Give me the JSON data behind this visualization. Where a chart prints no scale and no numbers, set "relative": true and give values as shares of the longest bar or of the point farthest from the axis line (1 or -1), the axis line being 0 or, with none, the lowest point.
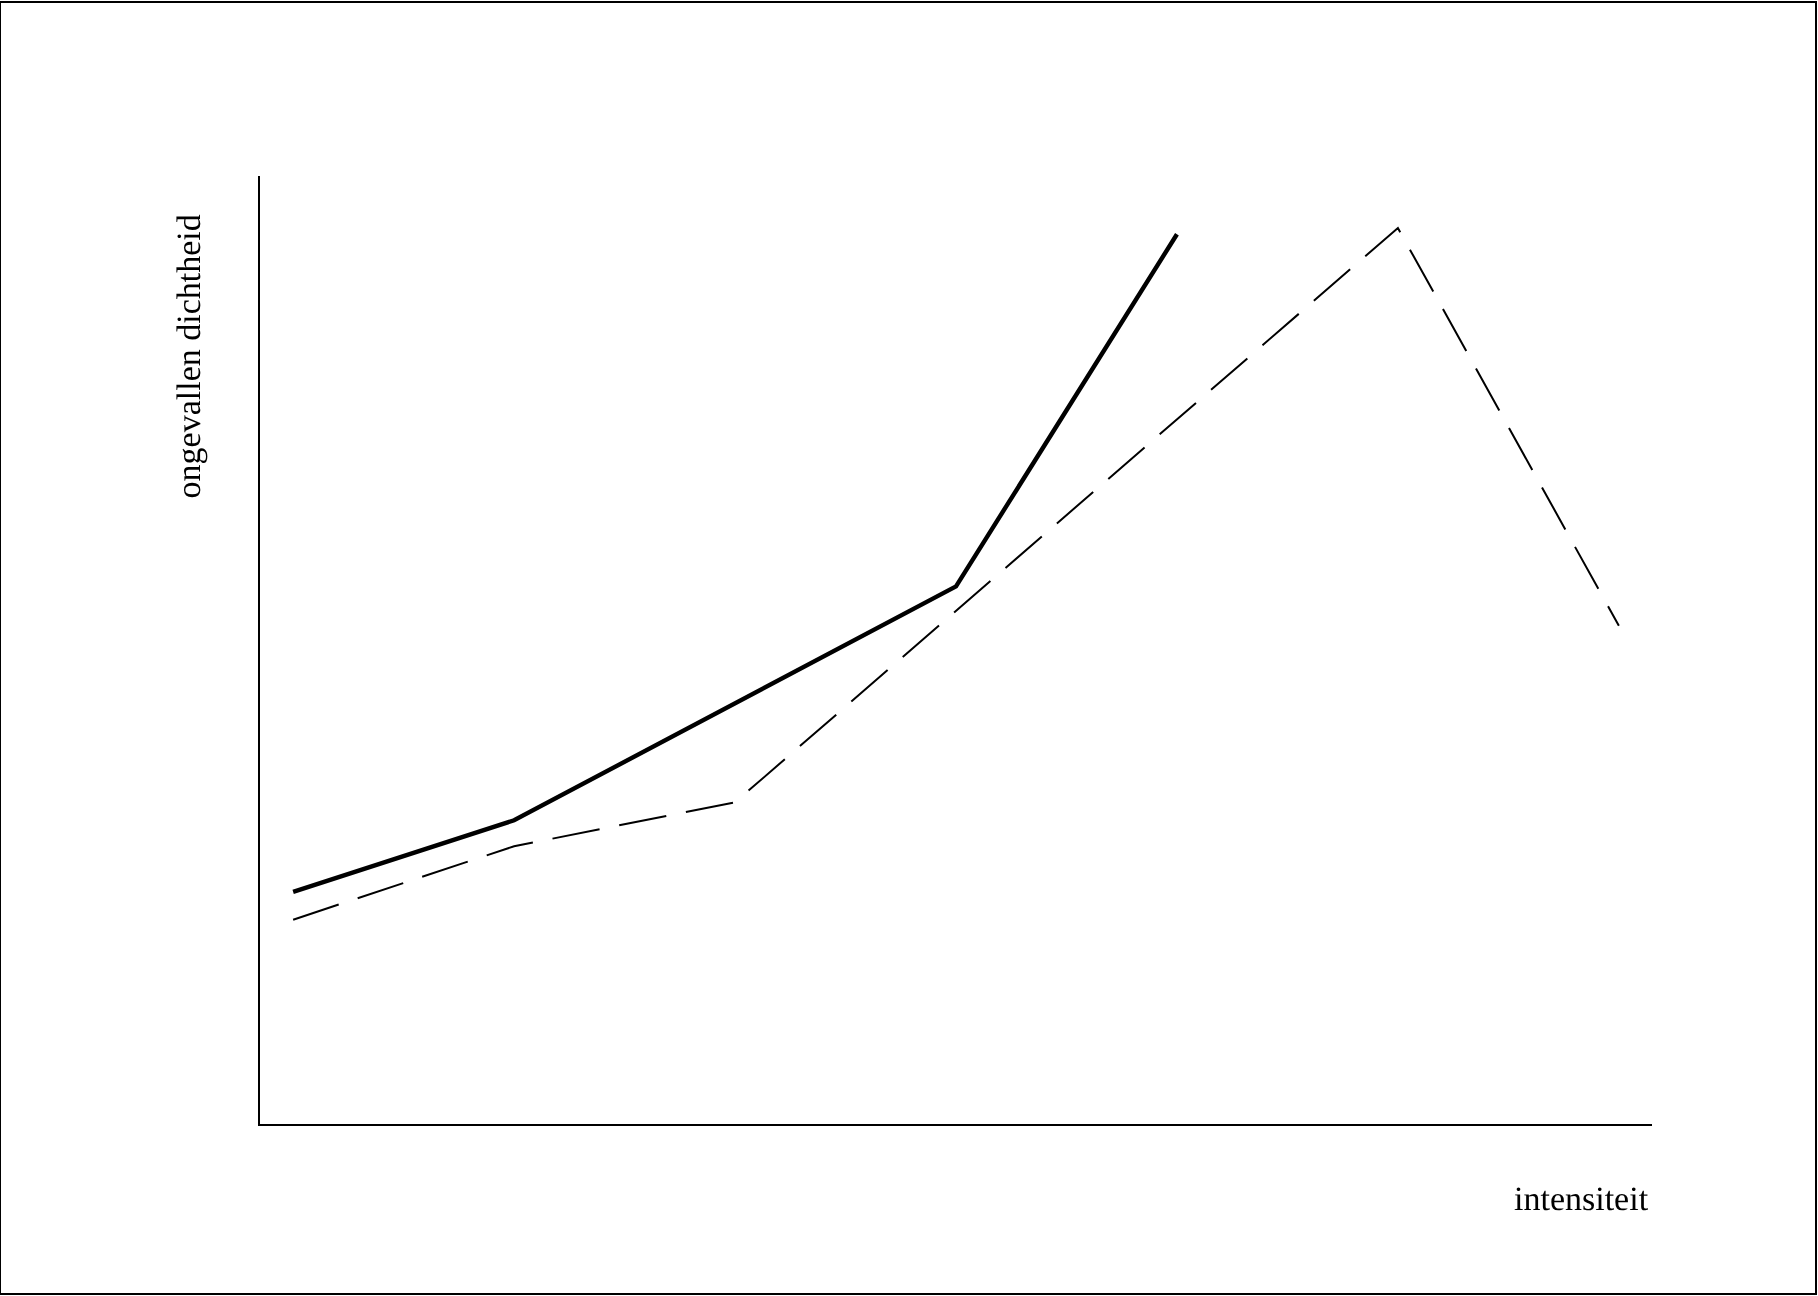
{
  "chart_data": {
    "type": "line",
    "relative": true,
    "xlabel": "intensiteit",
    "ylabel": "ongevallen dichtheid",
    "categories": [
      null,
      null,
      null,
      null,
      null,
      null,
      null
    ],
    "marker": "none",
    "series": [
      {
        "color": "#000000",
        "line_style": "solid",
        "values": [
          0.259,
          0.339,
          null,
          0.6,
          0.993,
          null,
          null
        ]
      },
      {
        "color": "#000000",
        "line_style": "dashed",
        "values": [
          0.228,
          0.31,
          0.359,
          null,
          null,
          1,
          0.556
        ]
      }
    ]
  }
}
